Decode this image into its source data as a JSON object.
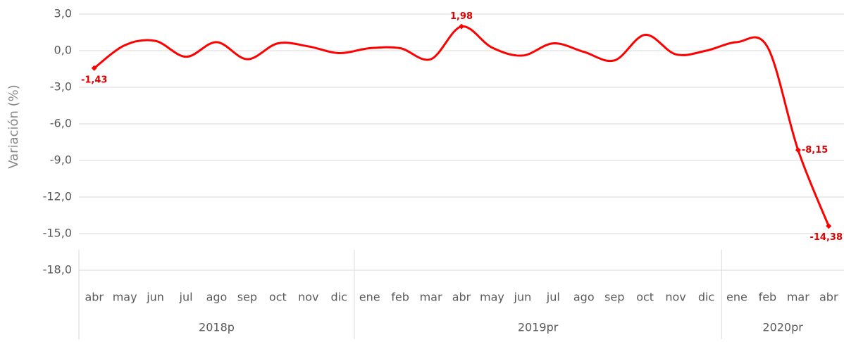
{
  "chart_data": {
    "type": "line",
    "y_label": "Variación (%)",
    "category_groups": [
      {
        "name": "2018p",
        "categories": [
          "abr",
          "may",
          "jun",
          "jul",
          "ago",
          "sep",
          "oct",
          "nov",
          "dic"
        ]
      },
      {
        "name": "2019pr",
        "categories": [
          "ene",
          "feb",
          "mar",
          "abr",
          "may",
          "jun",
          "jul",
          "ago",
          "sep",
          "oct",
          "nov",
          "dic"
        ]
      },
      {
        "name": "2020pr",
        "categories": [
          "ene",
          "feb",
          "mar",
          "abr"
        ]
      }
    ],
    "series": [
      {
        "color": "#ff0000",
        "values": [
          -1.43,
          0.45,
          0.8,
          -0.5,
          0.7,
          -0.7,
          0.6,
          0.35,
          -0.2,
          0.2,
          0.2,
          -0.7,
          1.98,
          0.25,
          -0.4,
          0.6,
          -0.1,
          -0.8,
          1.3,
          -0.3,
          0.0,
          0.7,
          0.3,
          -8.15,
          -14.38
        ],
        "value_labels": [
          "-1,43",
          null,
          null,
          null,
          null,
          null,
          null,
          null,
          null,
          null,
          null,
          null,
          "1,98",
          null,
          null,
          null,
          null,
          null,
          null,
          null,
          null,
          null,
          null,
          "-8,15",
          "-14,38"
        ]
      }
    ],
    "ylim": [
      -18,
      3
    ],
    "yticks": [
      {
        "value": 3,
        "label": "3,0"
      },
      {
        "value": 0,
        "label": "0,0"
      },
      {
        "value": -3,
        "label": "-3,0"
      },
      {
        "value": -6,
        "label": "-6,0"
      },
      {
        "value": -9,
        "label": "-9,0"
      },
      {
        "value": -12,
        "label": "-12,0"
      },
      {
        "value": -15,
        "label": "-15,0"
      },
      {
        "value": -18,
        "label": "-18,0"
      }
    ],
    "grid": true,
    "smooth": true
  }
}
